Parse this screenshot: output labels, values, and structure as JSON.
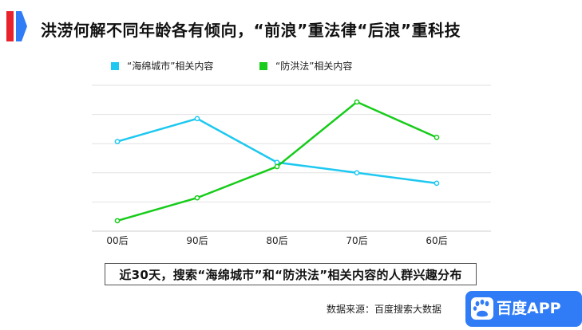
{
  "header": {
    "title": "洪涝何解不同年龄各有倾向，“前浪”重法律“后浪”重科技"
  },
  "chart_data": {
    "type": "line",
    "categories": [
      "00后",
      "90后",
      "80后",
      "70后",
      "60后"
    ],
    "series": [
      {
        "name": "“海绵城市”相关内容",
        "color": "#1ec8f0",
        "values": [
          43,
          54,
          33,
          28,
          23
        ]
      },
      {
        "name": "“防洪法”相关内容",
        "color": "#17cc1a",
        "values": [
          5,
          16,
          31,
          62,
          45
        ]
      }
    ],
    "ylim": [
      0,
      70
    ],
    "grid": true,
    "legend": "top-left",
    "title": "近30天，搜索“海绵城市”和“防洪法”相关内容的人群兴趣分布"
  },
  "footer": {
    "source": "数据来源：百度搜索大数据",
    "brand": "百度APP"
  },
  "colors": {
    "accent_red": "#e8212a",
    "accent_blue": "#2f7cf6",
    "brand_blue": "#2f7cf6"
  }
}
